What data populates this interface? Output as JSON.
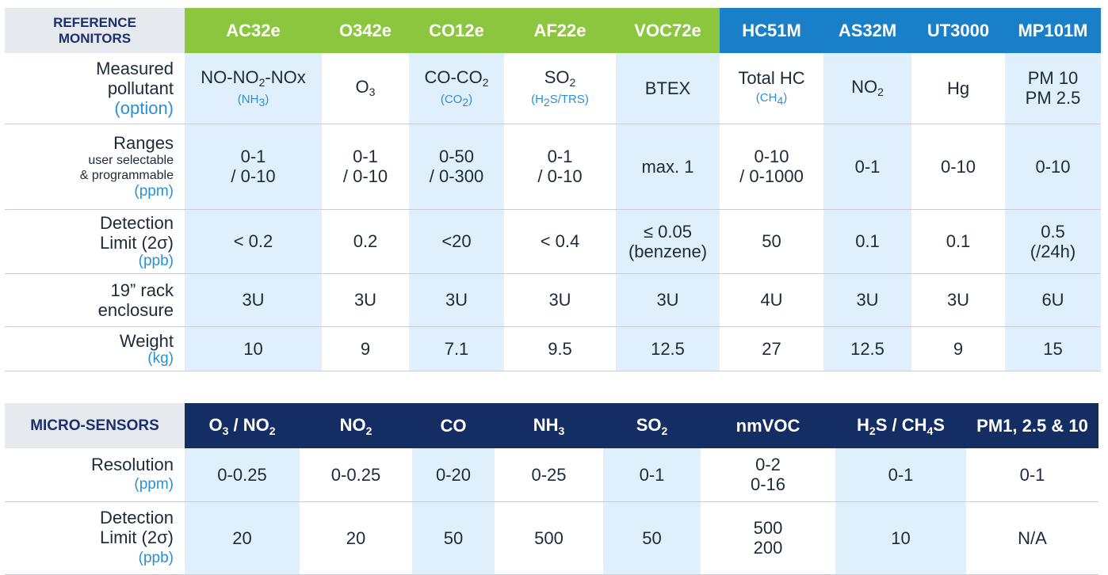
{
  "reference": {
    "corner_line1": "REFERENCE",
    "corner_line2": "MONITORS",
    "headers": [
      "AC32e",
      "O342e",
      "CO12e",
      "AF22e",
      "VOC72e",
      "HC51M",
      "AS32M",
      "UT3000",
      "MP101M"
    ],
    "header_colors": {
      "green": "#8cc63e",
      "blue": "#1a7fc9"
    },
    "rows": {
      "pollutant": {
        "label1": "Measured",
        "label2": "pollutant",
        "label3": "(option)",
        "ac32e_main_a": "NO-NO",
        "ac32e_sub_a": "2",
        "ac32e_main_b": "-NOx",
        "ac32e_opt_a": "(NH",
        "ac32e_opt_sub": "3",
        "ac32e_opt_b": ")",
        "o342e_main": "O",
        "o342e_sub": "3",
        "co12e_main_a": "CO-CO",
        "co12e_sub": "2",
        "co12e_opt_a": "(CO",
        "co12e_opt_sub": "2",
        "co12e_opt_b": ")",
        "af22e_main": "SO",
        "af22e_sub": "2",
        "af22e_opt_a": "(H",
        "af22e_opt_sub": "2",
        "af22e_opt_b": "S/TRS)",
        "voc72e": "BTEX",
        "hc51m_main": "Total HC",
        "hc51m_opt_a": "(CH",
        "hc51m_opt_sub": "4",
        "hc51m_opt_b": ")",
        "as32m_main": "NO",
        "as32m_sub": "2",
        "ut3000": "Hg",
        "mp101m_1": "PM 10",
        "mp101m_2": "PM 2.5"
      },
      "ranges": {
        "label1": "Ranges",
        "label2": "user selectable",
        "label3": "& programmable",
        "label4": "(ppm)",
        "values": [
          [
            "0-1",
            "/ 0-10"
          ],
          [
            "0-1",
            "/ 0-10"
          ],
          [
            "0-50",
            "/ 0-300"
          ],
          [
            "0-1",
            "/ 0-10"
          ],
          [
            "max. 1"
          ],
          [
            "0-10",
            "/ 0-1000"
          ],
          [
            "0-1"
          ],
          [
            "0-10"
          ],
          [
            "0-10"
          ]
        ]
      },
      "detection": {
        "label1": "Detection",
        "label2": "Limit (2σ)",
        "label3": "(ppb)",
        "values": [
          [
            "< 0.2"
          ],
          [
            "0.2"
          ],
          [
            "<20"
          ],
          [
            "< 0.4"
          ],
          [
            "≤ 0.05",
            "(benzene)"
          ],
          [
            "50"
          ],
          [
            "0.1"
          ],
          [
            "0.1"
          ],
          [
            "0.5",
            "(/24h)"
          ]
        ]
      },
      "rack": {
        "label1": "19” rack",
        "label2": "enclosure",
        "values": [
          "3U",
          "3U",
          "3U",
          "3U",
          "3U",
          "4U",
          "3U",
          "3U",
          "6U"
        ]
      },
      "weight": {
        "label1": "Weight",
        "label2": "(kg)",
        "values": [
          "10",
          "9",
          "7.1",
          "9.5",
          "12.5",
          "27",
          "12.5",
          "9",
          "15"
        ]
      }
    }
  },
  "micro": {
    "corner": "MICRO-SENSORS",
    "header_color": "#142e63",
    "headers": {
      "h1_a": "O",
      "h1_sub_a": "3",
      "h1_b": " / NO",
      "h1_sub_b": "2",
      "h2_a": "NO",
      "h2_sub": "2",
      "h3": "CO",
      "h4_a": "NH",
      "h4_sub": "3",
      "h5_a": "SO",
      "h5_sub": "2",
      "h6": "nmVOC",
      "h7_a": "H",
      "h7_sub_a": "2",
      "h7_b": "S / CH",
      "h7_sub_b": "4",
      "h7_c": "S",
      "h8": "PM1, 2.5 & 10"
    },
    "rows": {
      "resolution": {
        "label1": "Resolution",
        "label2": "(ppm)",
        "values": [
          [
            "0-0.25"
          ],
          [
            "0-0.25"
          ],
          [
            "0-20"
          ],
          [
            "0-25"
          ],
          [
            "0-1"
          ],
          [
            "0-2",
            "0-16"
          ],
          [
            "0-1"
          ],
          [
            "0-1"
          ]
        ]
      },
      "detection": {
        "label1": "Detection",
        "label2": "Limit (2σ)",
        "label3": "(ppb)",
        "values": [
          [
            "20"
          ],
          [
            "20"
          ],
          [
            "50"
          ],
          [
            "500"
          ],
          [
            "50"
          ],
          [
            "500",
            "200"
          ],
          [
            "10"
          ],
          [
            "N/A"
          ]
        ]
      }
    }
  }
}
